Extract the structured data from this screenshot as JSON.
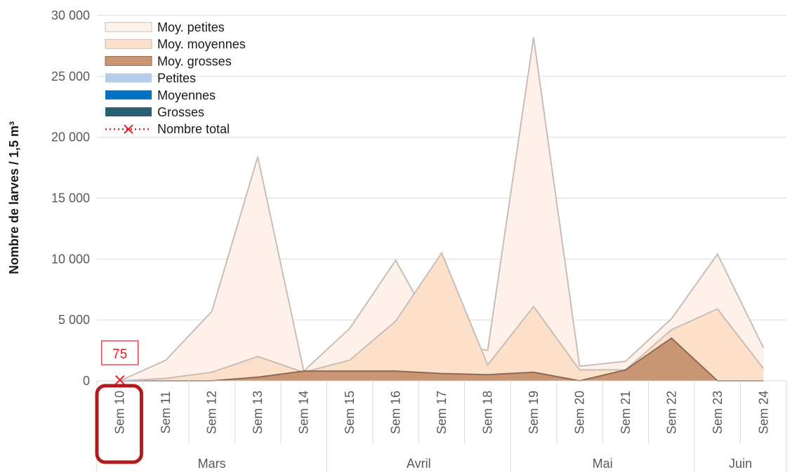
{
  "chart_data": {
    "type": "area",
    "ylabel": "Nombre de larves / 1,5 m³",
    "xlabel": "",
    "ylim": [
      0,
      30000
    ],
    "yticks": [
      0,
      5000,
      10000,
      15000,
      20000,
      25000,
      30000
    ],
    "ytick_labels": [
      "0",
      "5 000",
      "10 000",
      "15 000",
      "20 000",
      "25 000",
      "30 000"
    ],
    "grid": true,
    "legend_position": "top-left",
    "categories": [
      "Sem 10",
      "Sem 11",
      "Sem 12",
      "Sem 13",
      "Sem 14",
      "Sem 15",
      "Sem 16",
      "Sem 17",
      "Sem 18",
      "Sem 19",
      "Sem 20",
      "Sem 21",
      "Sem 22",
      "Sem 23",
      "Sem 24"
    ],
    "month_groups": [
      {
        "label": "Mars",
        "start": 0,
        "end": 4
      },
      {
        "label": "Avril",
        "start": 5,
        "end": 8
      },
      {
        "label": "Mai",
        "start": 9,
        "end": 12
      },
      {
        "label": "Juin",
        "start": 13,
        "end": 14
      }
    ],
    "series": [
      {
        "name": "Moy. petites",
        "kind": "area",
        "color": "#fdf1e9",
        "stroke": "#c9bdb8",
        "values": [
          0,
          1700,
          5700,
          18400,
          800,
          4300,
          9900,
          3100,
          2500,
          28200,
          1200,
          1600,
          5100,
          10400,
          2700
        ]
      },
      {
        "name": "Moy. moyennes",
        "kind": "area",
        "color": "#fce0c9",
        "stroke": "#c9bdb8",
        "values": [
          0,
          200,
          700,
          2000,
          700,
          1700,
          4900,
          10500,
          1300,
          6100,
          900,
          900,
          4200,
          5900,
          1000
        ]
      },
      {
        "name": "Moy. grosses",
        "kind": "area",
        "color": "#c99572",
        "stroke": "#8f6a53",
        "values": [
          0,
          0,
          0,
          300,
          800,
          800,
          800,
          600,
          500,
          700,
          0,
          900,
          3500,
          0,
          0
        ]
      },
      {
        "name": "Petites",
        "kind": "area",
        "color": "#b4cde8",
        "values": [
          75,
          0,
          0,
          0,
          0,
          0,
          0,
          0,
          0,
          0,
          0,
          0,
          0,
          0,
          0
        ]
      },
      {
        "name": "Moyennes",
        "kind": "area",
        "color": "#0070c0",
        "values": [
          0,
          0,
          0,
          0,
          0,
          0,
          0,
          0,
          0,
          0,
          0,
          0,
          0,
          0,
          0
        ]
      },
      {
        "name": "Grosses",
        "kind": "area",
        "color": "#2a5f73",
        "values": [
          0,
          0,
          0,
          0,
          0,
          0,
          0,
          0,
          0,
          0,
          0,
          0,
          0,
          0,
          0
        ]
      },
      {
        "name": "Nombre total",
        "kind": "line",
        "color": "#e31e24",
        "values": [
          75,
          null,
          null,
          null,
          null,
          null,
          null,
          null,
          null,
          null,
          null,
          null,
          null,
          null,
          null
        ]
      }
    ],
    "annotations": [
      {
        "category": "Sem 10",
        "text": "75"
      }
    ],
    "highlight_category": "Sem 10",
    "highlight_color": "#b01c1c"
  }
}
